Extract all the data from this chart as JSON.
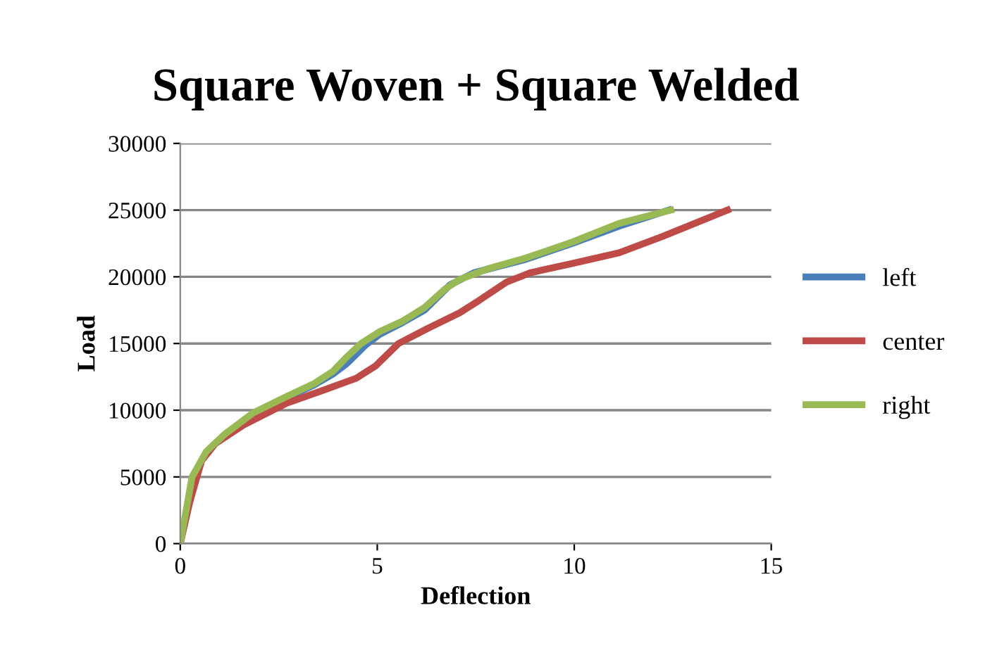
{
  "chart_data": {
    "type": "line",
    "title": "Square Woven + Square Welded",
    "xlabel": "Deflection",
    "ylabel": "Load",
    "xlim": [
      0,
      15
    ],
    "xticks": [
      0,
      5,
      10,
      15
    ],
    "ylim": [
      0,
      30000
    ],
    "yticks": [
      0,
      5000,
      10000,
      15000,
      20000,
      25000,
      30000
    ],
    "grid": "y",
    "legend": "right",
    "marker": "none",
    "line_style": "solid",
    "series": [
      {
        "name": "left",
        "color": "#4a7ebb",
        "x": [
          1.85,
          2.68,
          3.4,
          3.87,
          4.23,
          4.71,
          5.07,
          5.66,
          6.2,
          6.85,
          7.45,
          8.76,
          9.95,
          11.14,
          12.4
        ],
        "values": [
          9700,
          10900,
          11900,
          12700,
          13500,
          14900,
          15700,
          16600,
          17500,
          19400,
          20300,
          21300,
          22500,
          23800,
          25000
        ]
      },
      {
        "name": "center",
        "color": "#be4b48",
        "x": [
          0,
          0.24,
          0.54,
          0.89,
          1.61,
          2.68,
          3.63,
          4.47,
          4.95,
          5.54,
          6.26,
          7.09,
          7.57,
          8.28,
          8.88,
          9.95,
          11.14,
          12.22,
          13.89
        ],
        "values": [
          0,
          3100,
          6200,
          7500,
          8900,
          10500,
          11500,
          12400,
          13300,
          15000,
          16100,
          17300,
          18200,
          19600,
          20300,
          21000,
          21800,
          23000,
          25000
        ]
      },
      {
        "name": "right",
        "color": "#98b954",
        "x": [
          0,
          0.3,
          0.66,
          1.13,
          1.85,
          2.68,
          3.4,
          3.87,
          4.23,
          4.59,
          5.07,
          5.66,
          6.2,
          6.73,
          7.09,
          7.81,
          8.76,
          9.95,
          11.14,
          12.45
        ],
        "values": [
          0,
          5000,
          6900,
          8200,
          9800,
          11000,
          12000,
          12900,
          14000,
          15000,
          15900,
          16700,
          17700,
          19100,
          19800,
          20600,
          21400,
          22600,
          24000,
          25000
        ]
      }
    ]
  }
}
